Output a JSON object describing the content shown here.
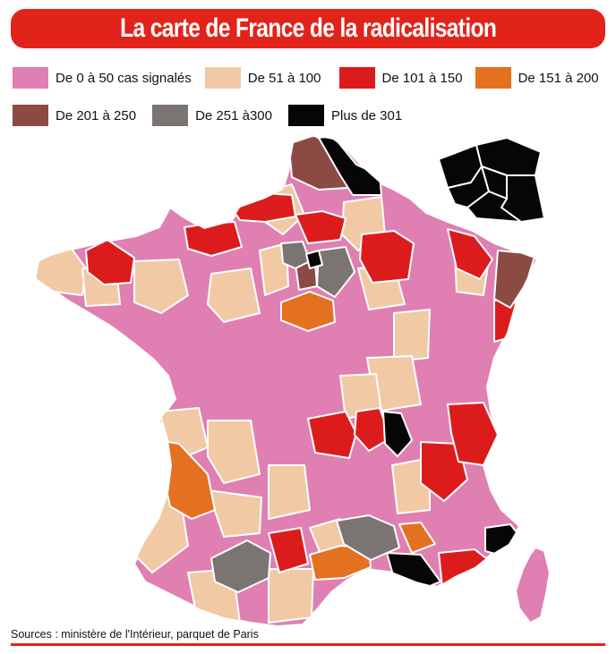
{
  "title": "La carte de France de la radicalisation",
  "colors": {
    "accent": "#e2231a",
    "cat_0_50": "#e07fb2",
    "cat_51_100": "#f2c9a5",
    "cat_101_150": "#dc1c1c",
    "cat_151_200": "#e3711f",
    "cat_201_250": "#8b4b43",
    "cat_251_300": "#7a7572",
    "cat_301_plus": "#060606"
  },
  "legend": [
    {
      "label": "De 0 à 50 cas signalés",
      "color": "#e07fb2"
    },
    {
      "label": "De 51 à 100",
      "color": "#f2c9a5"
    },
    {
      "label": "De 101 à 150",
      "color": "#dc1c1c"
    },
    {
      "label": "De 151 à 200",
      "color": "#e3711f"
    },
    {
      "label": "De 201 à 250",
      "color": "#8b4b43"
    },
    {
      "label": "De 251 à300",
      "color": "#7a7572"
    },
    {
      "label": "Plus de 301",
      "color": "#060606"
    }
  ],
  "source": "Sources : ministère de l'Intérieur, parquet de Paris"
}
